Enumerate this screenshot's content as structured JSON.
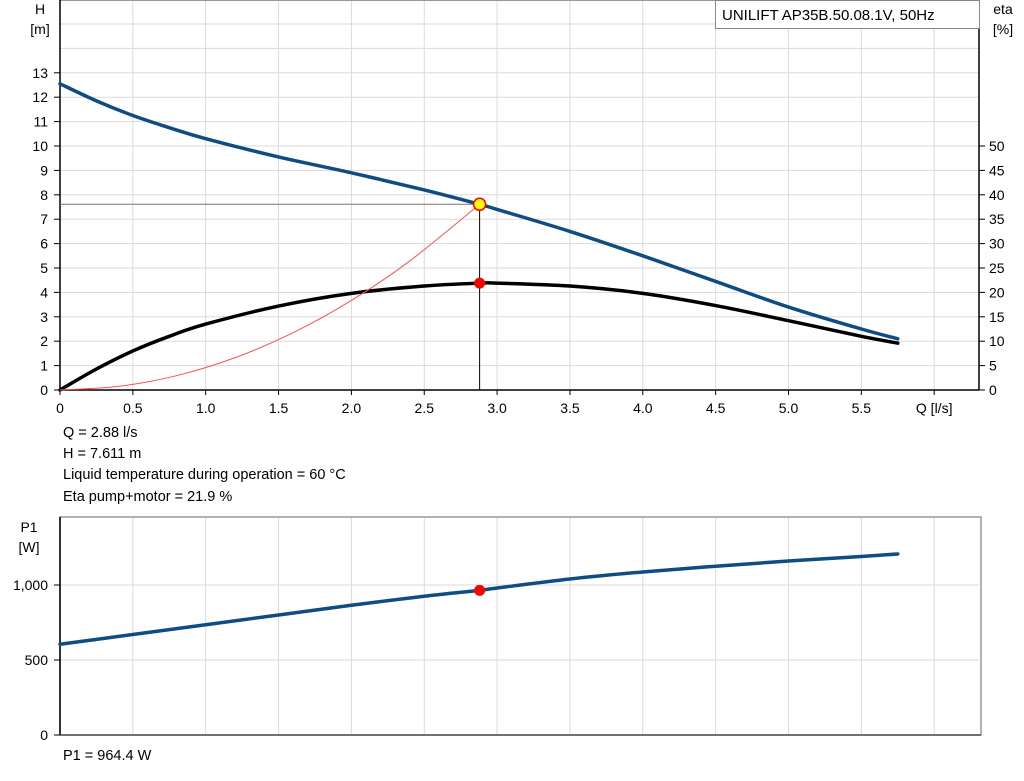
{
  "chart_data": [
    {
      "type": "line",
      "title": "UNILIFT AP35B.50.08.1V, 50Hz",
      "xlabel": "Q [l/s]",
      "ylabel": "H\n[m]",
      "ylabel_lines": [
        "H",
        "[m]"
      ],
      "y2label_lines": [
        "eta",
        "[%]"
      ],
      "xlim": [
        0,
        6.3
      ],
      "ylim": [
        0,
        16
      ],
      "y2lim": [
        0,
        80
      ],
      "x_ticks": [
        "0",
        "0.5",
        "1.0",
        "1.5",
        "2.0",
        "2.5",
        "3.0",
        "3.5",
        "4.0",
        "4.5",
        "5.0",
        "5.5"
      ],
      "y_ticks": [
        "0",
        "1",
        "2",
        "3",
        "4",
        "5",
        "6",
        "7",
        "8",
        "9",
        "10",
        "11",
        "12",
        "13"
      ],
      "y2_ticks": [
        "0",
        "5",
        "10",
        "15",
        "20",
        "25",
        "30",
        "35",
        "40",
        "45",
        "50"
      ],
      "grid": true,
      "series": [
        {
          "key": "H",
          "axis": "left",
          "color": "#0f4c81",
          "x": [
            0,
            0.25,
            0.5,
            0.75,
            1.0,
            1.5,
            2.0,
            2.5,
            2.88,
            3.0,
            3.5,
            4.0,
            4.5,
            5.0,
            5.5,
            5.75
          ],
          "y": [
            12.55,
            11.85,
            11.25,
            10.75,
            10.3,
            9.55,
            8.9,
            8.2,
            7.611,
            7.4,
            6.5,
            5.5,
            4.45,
            3.4,
            2.5,
            2.1
          ]
        },
        {
          "key": "eta",
          "axis": "right",
          "color": "#000000",
          "x": [
            0,
            0.25,
            0.5,
            0.75,
            1.0,
            1.5,
            2.0,
            2.5,
            2.88,
            3.0,
            3.5,
            4.0,
            4.5,
            5.0,
            5.5,
            5.75
          ],
          "y": [
            0,
            4.3,
            8.0,
            11.0,
            13.5,
            17.2,
            19.8,
            21.3,
            21.9,
            21.9,
            21.3,
            19.8,
            17.3,
            14.2,
            11.0,
            9.6
          ]
        },
        {
          "key": "system",
          "axis": "left",
          "color": "#ff5050",
          "x": [
            0,
            0.4,
            0.8,
            1.2,
            1.6,
            2.0,
            2.4,
            2.88
          ],
          "y": [
            0,
            0.147,
            0.587,
            1.321,
            2.349,
            3.67,
            5.285,
            7.611
          ]
        }
      ],
      "duty_point": {
        "Q": 2.88,
        "H": 7.611,
        "eta": 21.9
      }
    },
    {
      "type": "line",
      "xlabel": "",
      "ylabel_lines": [
        "P1",
        "[W]"
      ],
      "xlim": [
        0,
        6.3
      ],
      "ylim": [
        0,
        1450
      ],
      "y_ticks": [
        "0",
        "500",
        "1,000"
      ],
      "y_tick_values": [
        0,
        500,
        1000
      ],
      "grid": true,
      "series": [
        {
          "key": "P1",
          "color": "#0f4c81",
          "x": [
            0,
            0.5,
            1.0,
            1.5,
            2.0,
            2.5,
            2.88,
            3.0,
            3.5,
            4.0,
            4.5,
            5.0,
            5.5,
            5.75
          ],
          "y": [
            605,
            670,
            735,
            800,
            865,
            925,
            964.4,
            980,
            1040,
            1087,
            1125,
            1160,
            1190,
            1207
          ]
        }
      ],
      "duty_point": {
        "Q": 2.88,
        "P1": 964.4
      }
    }
  ],
  "readout": {
    "q": "Q = 2.88 l/s",
    "h": "H = 7.611 m",
    "temp": "Liquid temperature during operation = 60 °C",
    "eta": "Eta pump+motor = 21.9 %",
    "p1": "P1 = 964.4 W"
  }
}
